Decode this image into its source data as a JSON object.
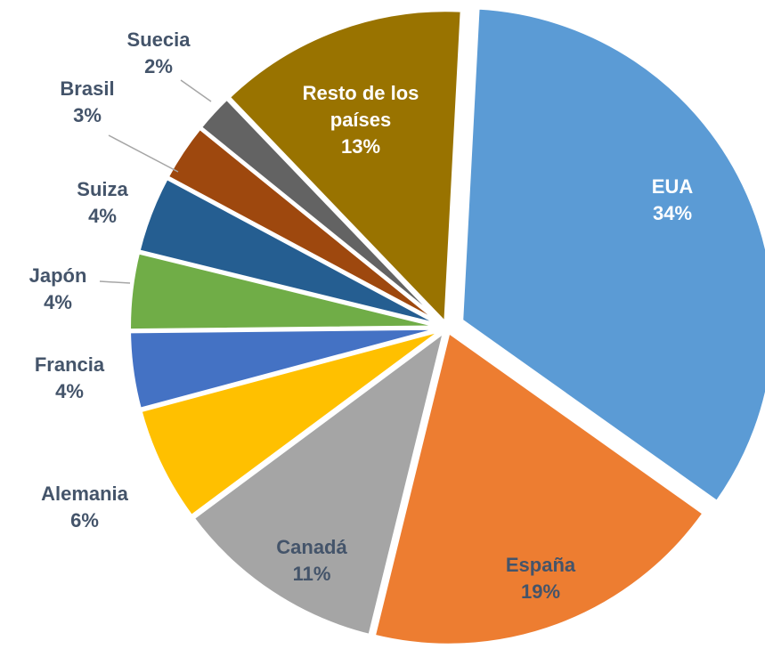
{
  "chart_data": {
    "type": "pie",
    "categories": [
      "EUA",
      "España",
      "Canadá",
      "Alemania",
      "Francia",
      "Japón",
      "Suiza",
      "Brasil",
      "Suecia",
      "Resto de los países"
    ],
    "values": [
      34,
      19,
      11,
      6,
      4,
      4,
      4,
      3,
      2,
      13
    ],
    "value_labels": [
      "34%",
      "19%",
      "11%",
      "6%",
      "4%",
      "4%",
      "4%",
      "3%",
      "2%",
      "13%"
    ],
    "colors": [
      "#5b9bd5",
      "#ed7d31",
      "#a5a5a5",
      "#ffc000",
      "#4472c4",
      "#70ad47",
      "#255e91",
      "#9e480e",
      "#636363",
      "#997300"
    ]
  }
}
